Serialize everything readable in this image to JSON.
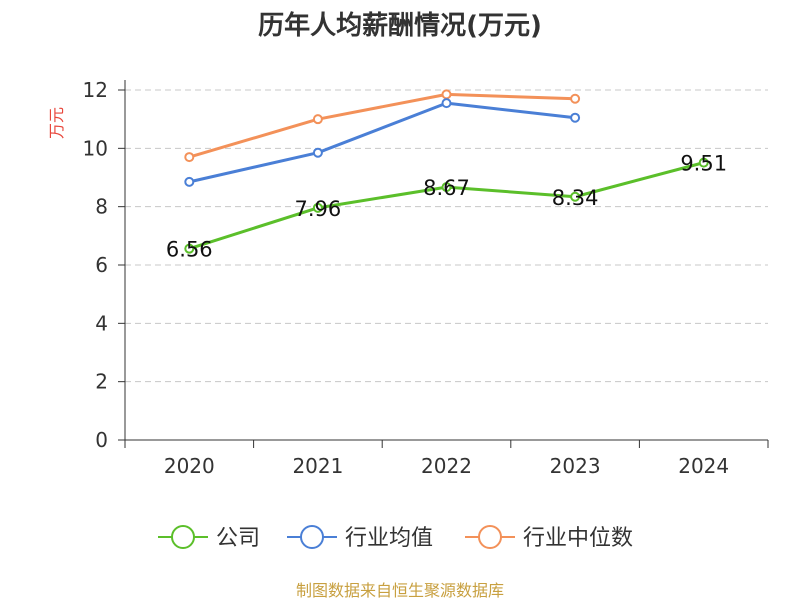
{
  "chart_data": {
    "type": "line",
    "title": "历年人均薪酬情况(万元)",
    "ylabel": "万元",
    "xlabel": "",
    "categories": [
      "2020",
      "2021",
      "2022",
      "2023",
      "2024"
    ],
    "ylim": [
      0,
      12
    ],
    "yticks": [
      0,
      2,
      4,
      6,
      8,
      10,
      12
    ],
    "grid": true,
    "legend_position": "bottom",
    "series": [
      {
        "name": "公司",
        "color": "#5bbf2a",
        "values": [
          6.56,
          7.96,
          8.67,
          8.34,
          9.51
        ],
        "labels": [
          "6.56",
          "7.96",
          "8.67",
          "8.34",
          "9.51"
        ]
      },
      {
        "name": "行业均值",
        "color": "#4a7fd6",
        "values": [
          8.85,
          9.85,
          11.55,
          11.05,
          null
        ]
      },
      {
        "name": "行业中位数",
        "color": "#f39159",
        "values": [
          9.7,
          11.0,
          11.85,
          11.7,
          null
        ]
      }
    ],
    "ylabel_color": "#e8463b"
  },
  "source": {
    "text": "制图数据来自恒生聚源数据库",
    "color": "#c8a040"
  }
}
